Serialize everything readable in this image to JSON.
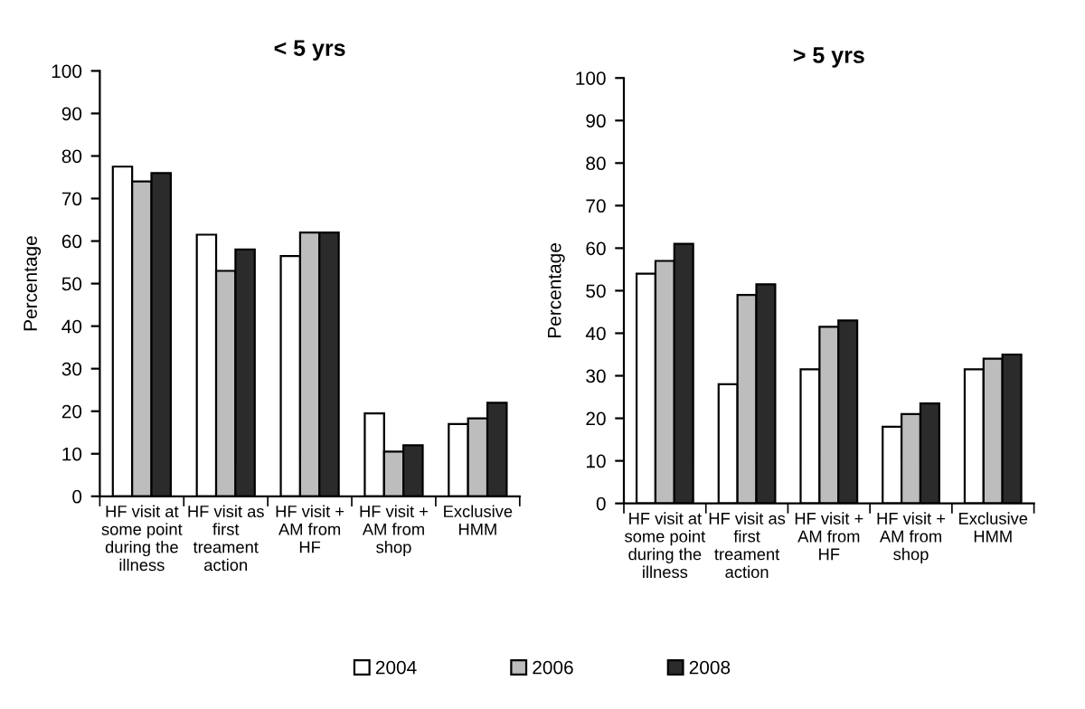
{
  "chart_data": [
    {
      "type": "bar",
      "title": "< 5 yrs",
      "ylabel": "Percentage",
      "categories": [
        "HF visit at\nsome point\nduring the\nillness",
        "HF visit as\nfirst\ntreament\naction",
        "HF visit +\nAM from\nHF",
        "HF visit +\nAM from\nshop",
        "Exclusive\nHMM"
      ],
      "series": [
        {
          "name": "2004",
          "color": "#ffffff",
          "values": [
            77.5,
            61.5,
            56.5,
            19.5,
            17
          ]
        },
        {
          "name": "2006",
          "color": "#bdbdbd",
          "values": [
            74,
            53,
            62,
            10.5,
            18.3
          ]
        },
        {
          "name": "2008",
          "color": "#2b2b2b",
          "values": [
            76,
            58,
            62,
            12,
            22
          ]
        }
      ],
      "ylim": [
        0,
        100
      ],
      "yticks": [
        0,
        10,
        20,
        30,
        40,
        50,
        60,
        70,
        80,
        90,
        100
      ],
      "legend": "bottom"
    },
    {
      "type": "bar",
      "title": "> 5 yrs",
      "ylabel": "Percentage",
      "categories": [
        "HF visit at\nsome point\nduring the\nillness",
        "HF visit as\nfirst\ntreament\naction",
        "HF visit +\nAM from\nHF",
        "HF visit +\nAM from\nshop",
        "Exclusive\nHMM"
      ],
      "series": [
        {
          "name": "2004",
          "color": "#ffffff",
          "values": [
            54,
            28,
            31.5,
            18,
            31.5
          ]
        },
        {
          "name": "2006",
          "color": "#bdbdbd",
          "values": [
            57,
            49,
            41.5,
            21,
            34
          ]
        },
        {
          "name": "2008",
          "color": "#2b2b2b",
          "values": [
            61,
            51.5,
            43,
            23.5,
            35
          ]
        }
      ],
      "ylim": [
        0,
        100
      ],
      "yticks": [
        0,
        10,
        20,
        30,
        40,
        50,
        60,
        70,
        80,
        90,
        100
      ],
      "legend": "bottom"
    }
  ]
}
